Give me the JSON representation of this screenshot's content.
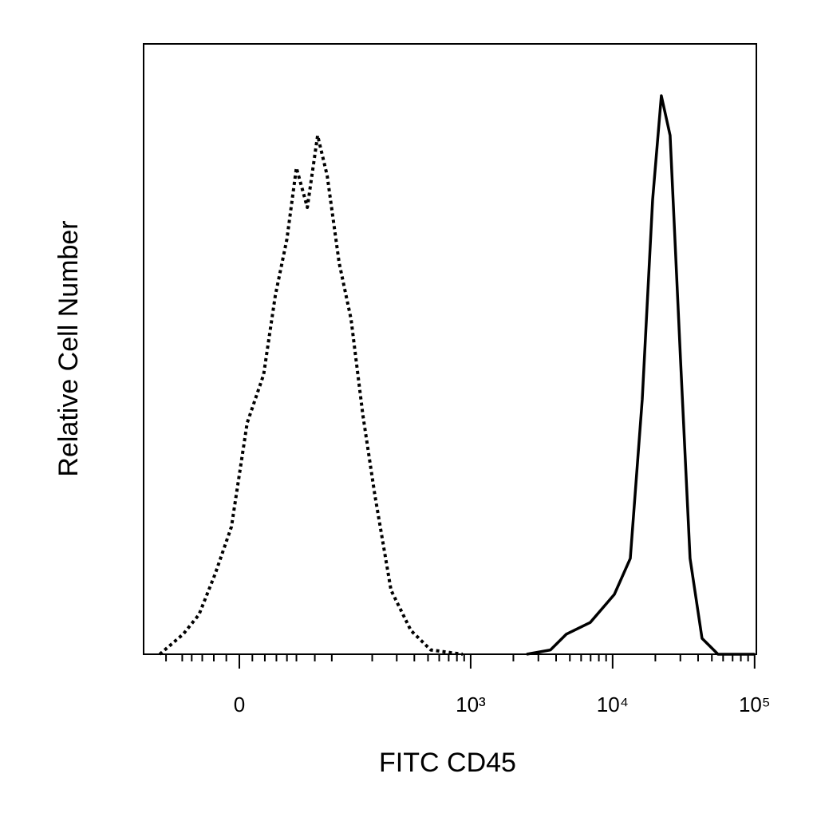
{
  "chart_data": {
    "type": "line",
    "x_label": "FITC CD45",
    "y_label": "Relative Cell Number",
    "xscale": "asinh",
    "xscale_cofactor": 47,
    "xlim": [
      -106,
      102900
    ],
    "ylim": [
      0,
      100
    ],
    "xticks": [
      0,
      {
        "value": 1000,
        "label": "10³"
      },
      {
        "value": 10000,
        "label": "10⁴"
      },
      {
        "value": 100000,
        "label": "10⁵"
      }
    ],
    "xminorticks": [
      -70,
      -50,
      -40,
      -30,
      -20,
      -10,
      10,
      20,
      30,
      40,
      50,
      73,
      100,
      200,
      300,
      400,
      500,
      600,
      700,
      800,
      900,
      2000,
      3000,
      4000,
      5000,
      6000,
      7000,
      8000,
      9000,
      20000,
      30000,
      40000,
      50000,
      60000,
      70000,
      80000,
      90000
    ],
    "series": [
      {
        "color": "#000000",
        "dash": "dotted",
        "x": [
          -79,
          -49,
          -33,
          -19,
          -6,
          6,
          19,
          29,
          40,
          50,
          63,
          77,
          92,
          114,
          140,
          171,
          209,
          273,
          378,
          523,
          879
        ],
        "values": [
          0,
          3.3,
          6.5,
          13.1,
          20.9,
          37.9,
          45.8,
          58.8,
          68,
          79.7,
          73.2,
          85,
          78.4,
          64.1,
          54.9,
          39.2,
          26.1,
          10.5,
          3.9,
          0.7,
          0
        ]
      },
      {
        "color": "#000000",
        "dash": "solid",
        "x": [
          2477,
          3647,
          4728,
          6960,
          10280,
          13320,
          16170,
          19130,
          22050,
          25420,
          30080,
          35110,
          42630,
          55230,
          100000
        ],
        "values": [
          0,
          0.7,
          3.3,
          5.2,
          9.8,
          15.7,
          41.8,
          74.5,
          91.5,
          85,
          48.4,
          15.7,
          2.6,
          0,
          0
        ]
      }
    ]
  }
}
